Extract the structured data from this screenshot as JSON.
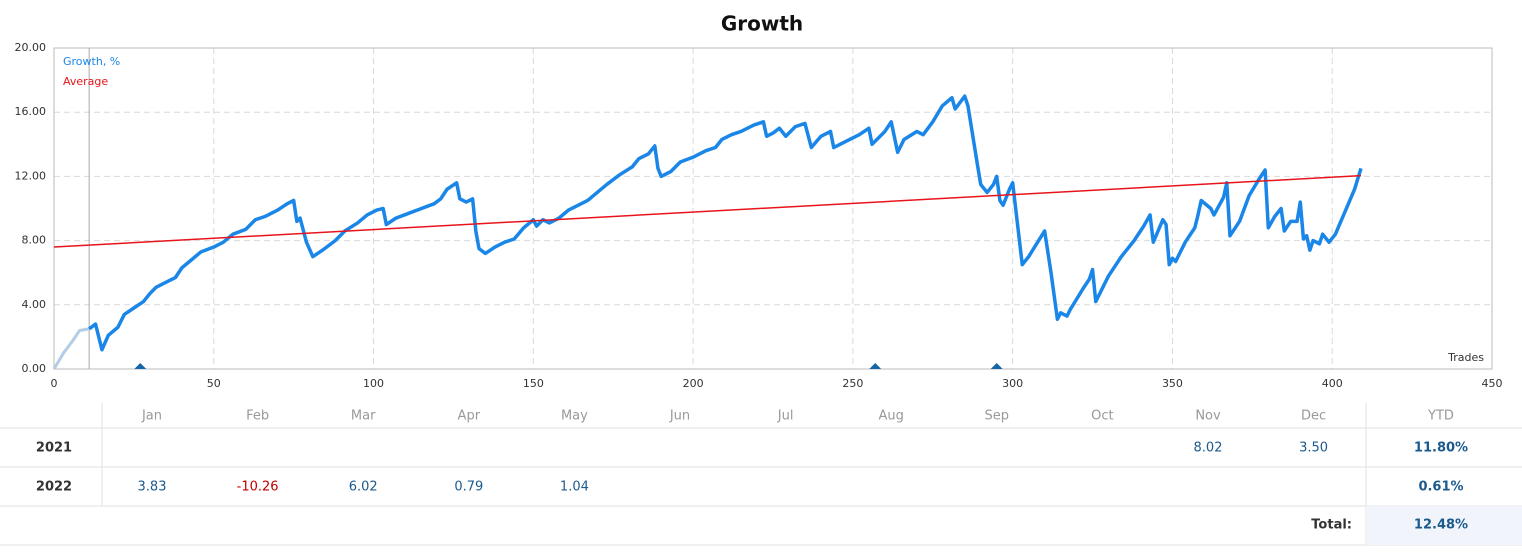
{
  "chart_data": {
    "type": "line",
    "title": "Growth",
    "xlabel": "Trades",
    "xlim": [
      0,
      450
    ],
    "xticks": [
      0,
      50,
      100,
      150,
      200,
      250,
      300,
      350,
      400,
      450
    ],
    "ylim": [
      0,
      20
    ],
    "yticks": [
      {
        "value": 0,
        "label": "0.00"
      },
      {
        "value": 4,
        "label": "4.00"
      },
      {
        "value": 8,
        "label": "8.00"
      },
      {
        "value": 12,
        "label": "12.00"
      },
      {
        "value": 16,
        "label": "16.00"
      },
      {
        "value": 20,
        "label": "20.00"
      }
    ],
    "grid": true,
    "legend": "top-left",
    "lead": {
      "color": "#b3cde6",
      "x": [
        0,
        3,
        6,
        8,
        11
      ],
      "values": [
        0,
        1,
        1.8,
        2.4,
        2.5
      ]
    },
    "series": [
      {
        "name": "Growth, %",
        "color": "#1a86e8",
        "x": [
          11,
          13,
          15,
          17,
          20,
          22,
          25,
          28,
          30,
          32,
          35,
          38,
          40,
          43,
          46,
          50,
          53,
          56,
          60,
          63,
          66,
          70,
          73,
          75,
          76,
          77,
          79,
          81,
          84,
          88,
          91,
          95,
          98,
          101,
          103,
          104,
          107,
          111,
          115,
          119,
          121,
          123,
          126,
          127,
          129,
          131,
          132,
          133,
          135,
          138,
          141,
          144,
          147,
          150,
          151,
          153,
          155,
          158,
          161,
          164,
          167,
          170,
          173,
          177,
          181,
          183,
          186,
          188,
          189,
          190,
          193,
          196,
          200,
          204,
          207,
          209,
          212,
          215,
          219,
          222,
          223,
          225,
          227,
          229,
          232,
          235,
          237,
          240,
          243,
          244,
          248,
          252,
          255,
          256,
          260,
          262,
          264,
          266,
          270,
          272,
          275,
          278,
          281,
          282,
          285,
          286,
          289,
          290,
          292,
          294,
          295,
          296,
          297,
          299,
          300,
          302,
          303,
          305,
          310,
          312,
          314,
          315,
          317,
          318,
          322,
          324,
          325,
          326,
          330,
          334,
          338,
          341,
          343,
          344,
          347,
          348,
          349,
          350,
          351,
          354,
          357,
          358,
          359,
          362,
          363,
          366,
          367,
          368,
          371,
          374,
          377,
          379,
          380,
          382,
          384,
          385,
          387,
          389,
          390,
          391,
          392,
          393,
          394,
          396,
          397,
          399,
          401,
          404,
          407,
          409
        ],
        "values": [
          2.5,
          2.8,
          1.2,
          2.1,
          2.6,
          3.4,
          3.8,
          4.2,
          4.7,
          5.1,
          5.4,
          5.7,
          6.3,
          6.8,
          7.3,
          7.6,
          7.9,
          8.4,
          8.7,
          9.3,
          9.5,
          9.9,
          10.3,
          10.5,
          9.2,
          9.4,
          7.9,
          7.0,
          7.4,
          8.0,
          8.6,
          9.1,
          9.6,
          9.9,
          10.0,
          9.0,
          9.4,
          9.7,
          10.0,
          10.3,
          10.6,
          11.2,
          11.6,
          10.6,
          10.4,
          10.6,
          8.6,
          7.5,
          7.2,
          7.6,
          7.9,
          8.1,
          8.8,
          9.3,
          8.9,
          9.3,
          9.1,
          9.4,
          9.9,
          10.2,
          10.5,
          11.0,
          11.5,
          12.1,
          12.6,
          13.1,
          13.4,
          13.9,
          12.5,
          12.0,
          12.3,
          12.9,
          13.2,
          13.6,
          13.8,
          14.3,
          14.6,
          14.8,
          15.2,
          15.4,
          14.5,
          14.7,
          15.0,
          14.5,
          15.1,
          15.3,
          13.8,
          14.5,
          14.8,
          13.8,
          14.2,
          14.6,
          15.0,
          14.0,
          14.8,
          15.4,
          13.5,
          14.3,
          14.8,
          14.6,
          15.4,
          16.4,
          16.9,
          16.2,
          17.0,
          16.4,
          12.7,
          11.5,
          11.0,
          11.5,
          12.0,
          10.5,
          10.2,
          11.2,
          11.6,
          8.2,
          6.5,
          7.0,
          8.6,
          6.0,
          3.1,
          3.5,
          3.3,
          3.7,
          5.0,
          5.6,
          6.2,
          4.2,
          5.8,
          7.0,
          8.0,
          8.9,
          9.6,
          7.9,
          9.3,
          9.0,
          6.5,
          6.9,
          6.7,
          7.9,
          8.8,
          9.6,
          10.5,
          10.0,
          9.6,
          10.7,
          11.6,
          8.3,
          9.2,
          10.8,
          11.8,
          12.4,
          8.8,
          9.5,
          10.0,
          8.6,
          9.2,
          9.2,
          10.4,
          8.1,
          8.3,
          7.4,
          8.0,
          7.8,
          8.4,
          7.9,
          8.4,
          9.8,
          11.2,
          12.5
        ]
      },
      {
        "name": "Average",
        "color": "#e8141b",
        "x": [
          0,
          409
        ],
        "values": [
          7.6,
          12.05
        ]
      }
    ],
    "markers": {
      "color": "#1565a8",
      "x": [
        27,
        257,
        295
      ]
    }
  },
  "table": {
    "months": [
      "Jan",
      "Feb",
      "Mar",
      "Apr",
      "May",
      "Jun",
      "Jul",
      "Aug",
      "Sep",
      "Oct",
      "Nov",
      "Dec"
    ],
    "ytd_header": "YTD",
    "rows": [
      {
        "year": "2021",
        "cells": [
          null,
          null,
          null,
          null,
          null,
          null,
          null,
          null,
          null,
          null,
          "8.02",
          "3.50"
        ],
        "ytd": "11.80%"
      },
      {
        "year": "2022",
        "cells": [
          "3.83",
          "-10.26",
          "6.02",
          "0.79",
          "1.04",
          null,
          null,
          null,
          null,
          null,
          null,
          null
        ],
        "ytd": "0.61%"
      }
    ],
    "total_label": "Total:",
    "total": "12.48%"
  }
}
